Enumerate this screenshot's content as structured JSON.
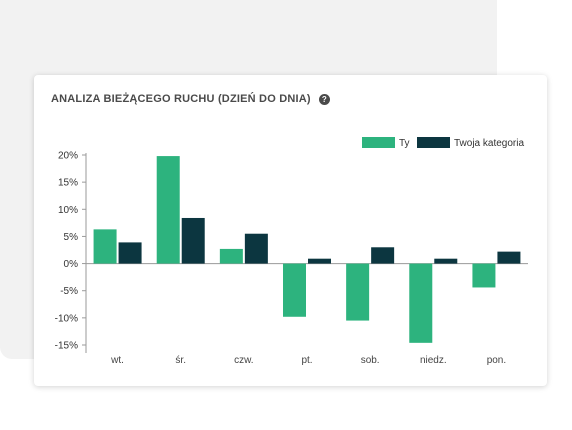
{
  "card": {
    "title": "ANALIZA BIEŻĄCEGO RUCHU (DZIEŃ DO DNIA)",
    "help_icon": "question-circle-icon"
  },
  "colors": {
    "series_ty": "#2db37e",
    "series_kategoria": "#0c3640",
    "zero_line": "#9a9a9a",
    "axis_line": "#9a9a9a"
  },
  "chart_data": {
    "type": "bar",
    "categories": [
      "wt.",
      "śr.",
      "czw.",
      "pt.",
      "sob.",
      "niedz.",
      "pon."
    ],
    "series": [
      {
        "name": "Ty",
        "values": [
          6.3,
          19.8,
          2.7,
          -9.8,
          -10.5,
          -14.6,
          -4.4
        ]
      },
      {
        "name": "Twoja kategoria",
        "values": [
          3.9,
          8.4,
          5.5,
          0.9,
          3.0,
          0.9,
          2.2
        ]
      }
    ],
    "y_ticks": [
      "20%",
      "15%",
      "10%",
      "5%",
      "0%",
      "-5%",
      "-10%",
      "-15%"
    ],
    "ylim": [
      -15,
      20
    ],
    "legend_position": "top-right",
    "grid": false
  }
}
